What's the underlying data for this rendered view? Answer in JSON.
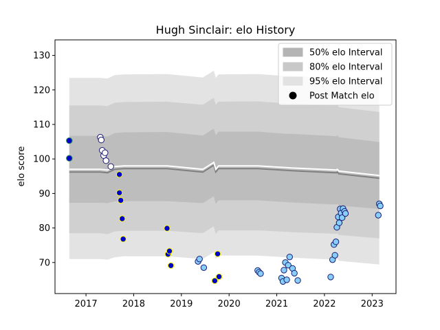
{
  "chart_data": {
    "type": "scatter",
    "title": "Hugh Sinclair: elo History",
    "xlabel": "",
    "ylabel": "elo score",
    "xlim": [
      2016.35,
      2023.5
    ],
    "ylim": [
      61.0,
      134.5
    ],
    "x_ticks": [
      2017,
      2018,
      2019,
      2020,
      2021,
      2022,
      2023
    ],
    "y_ticks": [
      70,
      80,
      90,
      100,
      110,
      120,
      130
    ],
    "grid": false,
    "legend_position": "top-right",
    "legend": [
      {
        "label": "50% elo Interval",
        "kind": "patch",
        "color": "#b4b4b4"
      },
      {
        "label": "80% elo Interval",
        "kind": "patch",
        "color": "#c8c8c8"
      },
      {
        "label": "95% elo Interval",
        "kind": "patch",
        "color": "#e2e2e2"
      },
      {
        "label": "Post Match elo",
        "kind": "marker",
        "color": "#000000"
      }
    ],
    "colors": {
      "band_50": "#bdbdbd",
      "band_80": "#d0d0d0",
      "band_95": "#e3e3e3",
      "mean_line": "#ffffff",
      "mean_shadow": "#7f7f7f"
    },
    "bands": {
      "x": [
        2016.65,
        2017.3,
        2017.45,
        2017.6,
        2017.8,
        2018.7,
        2019.45,
        2019.68,
        2019.72,
        2019.78,
        2020.6,
        2021.2,
        2021.3,
        2022.25,
        2022.27,
        2022.3,
        2023.15
      ],
      "mean": [
        97.0,
        97.0,
        96.8,
        97.8,
        98.0,
        98.0,
        97.0,
        99.0,
        97.0,
        98.0,
        98.0,
        97.5,
        97.4,
        96.8,
        97.0,
        96.5,
        95.2
      ],
      "lower50": [
        87.3,
        87.3,
        87.2,
        87.7,
        87.8,
        87.8,
        87.2,
        89.2,
        87.0,
        88.0,
        88.0,
        87.5,
        87.4,
        86.8,
        87.0,
        86.5,
        85.5
      ],
      "upper50": [
        106.7,
        106.7,
        106.5,
        107.5,
        107.7,
        107.8,
        106.8,
        108.8,
        106.9,
        107.9,
        107.9,
        107.3,
        107.3,
        106.6,
        106.9,
        106.3,
        104.9
      ],
      "lower80": [
        78.5,
        78.5,
        78.2,
        79.0,
        79.2,
        79.2,
        78.5,
        80.5,
        78.3,
        79.3,
        79.3,
        78.9,
        78.8,
        78.3,
        78.5,
        78.0,
        77.0
      ],
      "upper80": [
        115.5,
        115.5,
        115.3,
        116.3,
        116.5,
        116.6,
        115.7,
        117.7,
        115.7,
        116.6,
        116.7,
        116.1,
        116.1,
        115.5,
        115.7,
        115.0,
        113.6
      ],
      "lower95": [
        71.0,
        71.0,
        70.8,
        71.5,
        71.8,
        71.8,
        71.0,
        73.0,
        71.0,
        72.0,
        72.0,
        71.5,
        71.4,
        70.8,
        71.0,
        70.5,
        69.4
      ],
      "upper95": [
        123.5,
        123.5,
        123.3,
        124.3,
        124.5,
        124.6,
        123.6,
        125.6,
        123.5,
        124.5,
        124.6,
        124.0,
        124.0,
        123.4,
        123.6,
        123.0,
        121.5
      ]
    },
    "points": [
      {
        "x": 2016.65,
        "y": 105.3,
        "fill": "#0000cd",
        "edge": "#2e8b57"
      },
      {
        "x": 2016.65,
        "y": 100.2,
        "fill": "#0000cd",
        "edge": "#2e8b57"
      },
      {
        "x": 2017.3,
        "y": 106.3,
        "fill": "#ffffff",
        "edge": "#191970"
      },
      {
        "x": 2017.32,
        "y": 105.5,
        "fill": "#ffffff",
        "edge": "#191970"
      },
      {
        "x": 2017.34,
        "y": 102.5,
        "fill": "#ffffff",
        "edge": "#191970"
      },
      {
        "x": 2017.37,
        "y": 101.0,
        "fill": "#ffffff",
        "edge": "#191970"
      },
      {
        "x": 2017.4,
        "y": 101.8,
        "fill": "#ffffff",
        "edge": "#191970"
      },
      {
        "x": 2017.42,
        "y": 99.5,
        "fill": "#ffffff",
        "edge": "#191970"
      },
      {
        "x": 2017.52,
        "y": 97.8,
        "fill": "#ffffff",
        "edge": "#191970"
      },
      {
        "x": 2017.7,
        "y": 95.5,
        "fill": "#0000cd",
        "edge": "#ffff00"
      },
      {
        "x": 2017.7,
        "y": 90.2,
        "fill": "#0000cd",
        "edge": "#ffff00"
      },
      {
        "x": 2017.73,
        "y": 88.0,
        "fill": "#0000cd",
        "edge": "#ffff00"
      },
      {
        "x": 2017.76,
        "y": 82.7,
        "fill": "#0000cd",
        "edge": "#ffff00"
      },
      {
        "x": 2017.78,
        "y": 76.8,
        "fill": "#0000cd",
        "edge": "#ffff00"
      },
      {
        "x": 2018.7,
        "y": 79.9,
        "fill": "#0000cd",
        "edge": "#ffff00"
      },
      {
        "x": 2018.72,
        "y": 72.4,
        "fill": "#0000cd",
        "edge": "#ffff00"
      },
      {
        "x": 2018.75,
        "y": 73.3,
        "fill": "#0000cd",
        "edge": "#ffff00"
      },
      {
        "x": 2018.78,
        "y": 69.1,
        "fill": "#0000cd",
        "edge": "#ffff00"
      },
      {
        "x": 2019.35,
        "y": 70.3,
        "fill": "#87cefa",
        "edge": "#191970"
      },
      {
        "x": 2019.38,
        "y": 71.0,
        "fill": "#87cefa",
        "edge": "#191970"
      },
      {
        "x": 2019.47,
        "y": 68.5,
        "fill": "#87cefa",
        "edge": "#191970"
      },
      {
        "x": 2019.7,
        "y": 64.7,
        "fill": "#0000cd",
        "edge": "#ffff00"
      },
      {
        "x": 2019.76,
        "y": 72.5,
        "fill": "#0000cd",
        "edge": "#ffff00"
      },
      {
        "x": 2019.79,
        "y": 65.9,
        "fill": "#0000cd",
        "edge": "#ffff00"
      },
      {
        "x": 2020.6,
        "y": 67.7,
        "fill": "#87cefa",
        "edge": "#191970"
      },
      {
        "x": 2020.63,
        "y": 67.2,
        "fill": "#87cefa",
        "edge": "#191970"
      },
      {
        "x": 2020.66,
        "y": 66.8,
        "fill": "#87cefa",
        "edge": "#191970"
      },
      {
        "x": 2021.1,
        "y": 65.5,
        "fill": "#87cefa",
        "edge": "#191970"
      },
      {
        "x": 2021.13,
        "y": 64.5,
        "fill": "#87cefa",
        "edge": "#191970"
      },
      {
        "x": 2021.15,
        "y": 67.8,
        "fill": "#87cefa",
        "edge": "#191970"
      },
      {
        "x": 2021.18,
        "y": 70.0,
        "fill": "#87cefa",
        "edge": "#191970"
      },
      {
        "x": 2021.21,
        "y": 65.0,
        "fill": "#87cefa",
        "edge": "#191970"
      },
      {
        "x": 2021.24,
        "y": 69.2,
        "fill": "#87cefa",
        "edge": "#191970"
      },
      {
        "x": 2021.27,
        "y": 71.6,
        "fill": "#87cefa",
        "edge": "#191970"
      },
      {
        "x": 2021.33,
        "y": 68.3,
        "fill": "#87cefa",
        "edge": "#191970"
      },
      {
        "x": 2021.37,
        "y": 66.9,
        "fill": "#87cefa",
        "edge": "#191970"
      },
      {
        "x": 2021.44,
        "y": 64.8,
        "fill": "#87cefa",
        "edge": "#191970"
      },
      {
        "x": 2022.13,
        "y": 65.8,
        "fill": "#87cefa",
        "edge": "#191970"
      },
      {
        "x": 2022.17,
        "y": 70.8,
        "fill": "#87cefa",
        "edge": "#191970"
      },
      {
        "x": 2022.2,
        "y": 75.2,
        "fill": "#87cefa",
        "edge": "#191970"
      },
      {
        "x": 2022.22,
        "y": 72.1,
        "fill": "#87cefa",
        "edge": "#191970"
      },
      {
        "x": 2022.24,
        "y": 76.0,
        "fill": "#87cefa",
        "edge": "#191970"
      },
      {
        "x": 2022.26,
        "y": 80.2,
        "fill": "#87cefa",
        "edge": "#191970"
      },
      {
        "x": 2022.29,
        "y": 83.2,
        "fill": "#87cefa",
        "edge": "#191970"
      },
      {
        "x": 2022.31,
        "y": 81.5,
        "fill": "#87cefa",
        "edge": "#191970"
      },
      {
        "x": 2022.33,
        "y": 85.5,
        "fill": "#87cefa",
        "edge": "#191970"
      },
      {
        "x": 2022.35,
        "y": 84.3,
        "fill": "#87cefa",
        "edge": "#191970"
      },
      {
        "x": 2022.37,
        "y": 83.0,
        "fill": "#87cefa",
        "edge": "#191970"
      },
      {
        "x": 2022.39,
        "y": 85.6,
        "fill": "#87cefa",
        "edge": "#191970"
      },
      {
        "x": 2022.42,
        "y": 84.8,
        "fill": "#87cefa",
        "edge": "#191970"
      },
      {
        "x": 2022.44,
        "y": 84.2,
        "fill": "#87cefa",
        "edge": "#191970"
      },
      {
        "x": 2023.13,
        "y": 83.7,
        "fill": "#87cefa",
        "edge": "#191970"
      },
      {
        "x": 2023.15,
        "y": 87.0,
        "fill": "#87cefa",
        "edge": "#191970"
      },
      {
        "x": 2023.17,
        "y": 86.4,
        "fill": "#87cefa",
        "edge": "#191970"
      }
    ]
  }
}
